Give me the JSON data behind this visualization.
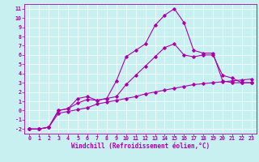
{
  "title": "",
  "xlabel": "Windchill (Refroidissement éolien,°C)",
  "ylabel": "",
  "bg_color": "#c8f0f0",
  "line_color": "#aa00aa",
  "xlim": [
    -0.5,
    23.5
  ],
  "ylim": [
    -2.5,
    11.5
  ],
  "xticks": [
    0,
    1,
    2,
    3,
    4,
    5,
    6,
    7,
    8,
    9,
    10,
    11,
    12,
    13,
    14,
    15,
    16,
    17,
    18,
    19,
    20,
    21,
    22,
    23
  ],
  "yticks": [
    -2,
    -1,
    0,
    1,
    2,
    3,
    4,
    5,
    6,
    7,
    8,
    9,
    10,
    11
  ],
  "line1_x": [
    0,
    1,
    2,
    3,
    4,
    5,
    6,
    7,
    8,
    9,
    10,
    11,
    12,
    13,
    14,
    15,
    16,
    17,
    18,
    19,
    20,
    21,
    22,
    23
  ],
  "line1_y": [
    -2,
    -2,
    -1.8,
    -0.3,
    -0.1,
    0.1,
    0.3,
    0.7,
    0.9,
    1.1,
    1.3,
    1.5,
    1.8,
    2.0,
    2.2,
    2.4,
    2.6,
    2.8,
    2.9,
    3.0,
    3.1,
    3.2,
    3.3,
    3.4
  ],
  "line2_x": [
    0,
    1,
    2,
    3,
    4,
    5,
    6,
    7,
    8,
    9,
    10,
    11,
    12,
    13,
    14,
    15,
    16,
    17,
    18,
    19,
    20,
    21,
    22,
    23
  ],
  "line2_y": [
    -2,
    -2,
    -1.8,
    0.0,
    0.2,
    1.3,
    1.5,
    1.1,
    1.3,
    3.2,
    5.8,
    6.5,
    7.2,
    9.2,
    10.3,
    11.0,
    9.5,
    6.5,
    6.2,
    6.2,
    3.2,
    3.0,
    3.0,
    3.0
  ],
  "line3_x": [
    0,
    1,
    2,
    3,
    4,
    5,
    6,
    7,
    8,
    9,
    10,
    11,
    12,
    13,
    14,
    15,
    16,
    17,
    18,
    19,
    20,
    21,
    22,
    23
  ],
  "line3_y": [
    -2,
    -2,
    -1.8,
    0.0,
    0.2,
    0.8,
    1.2,
    1.1,
    1.3,
    1.5,
    2.8,
    3.8,
    4.8,
    5.8,
    6.8,
    7.2,
    6.0,
    5.8,
    6.0,
    6.0,
    3.8,
    3.5,
    3.0,
    3.0
  ],
  "xlabel_fontsize": 5.5,
  "tick_fontsize": 4.8,
  "ylabel_fontsize": 5.0
}
